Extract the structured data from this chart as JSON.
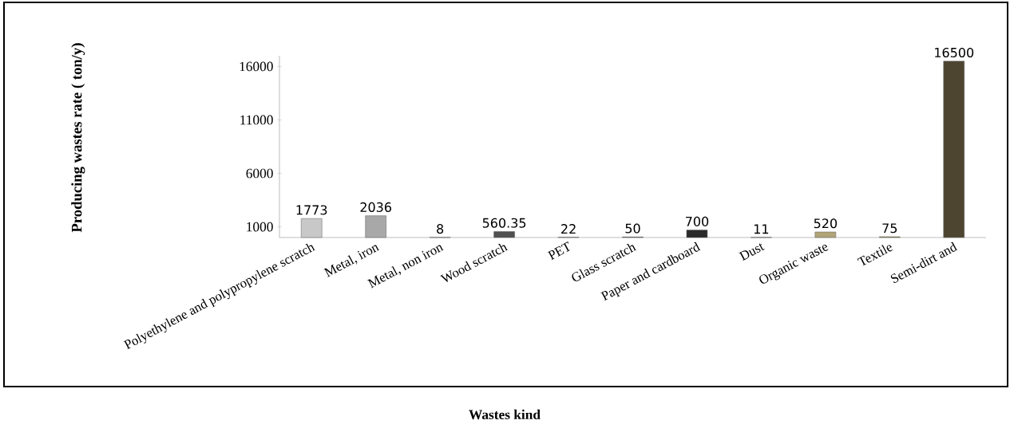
{
  "chart_data": {
    "type": "bar",
    "xlabel": "Wastes kind",
    "ylabel": "Producing wastes rate ( ton/y)",
    "categories": [
      "Polyethylene and polypropylene scratch",
      "Metal, iron",
      "Metal, non iron",
      "Wood scratch",
      "PET",
      "Glass scratch",
      "Paper and cardboard",
      "Dust",
      "Organic waste",
      "Textile",
      "Semi-dirt and"
    ],
    "values": [
      1773,
      2036,
      8,
      560.35,
      22,
      50,
      700,
      11,
      520,
      75,
      16500
    ],
    "colors": [
      "#c8c8c8",
      "#a8a8a8",
      "#5a5a5a",
      "#505050",
      "#454545",
      "#383838",
      "#2a2a2a",
      "#1e1e1e",
      "#b0a478",
      "#8f824e",
      "#4d4530"
    ],
    "ylim": [
      0,
      17000
    ],
    "yticks": [
      1000,
      6000,
      11000,
      16000
    ],
    "data_labels": true
  }
}
